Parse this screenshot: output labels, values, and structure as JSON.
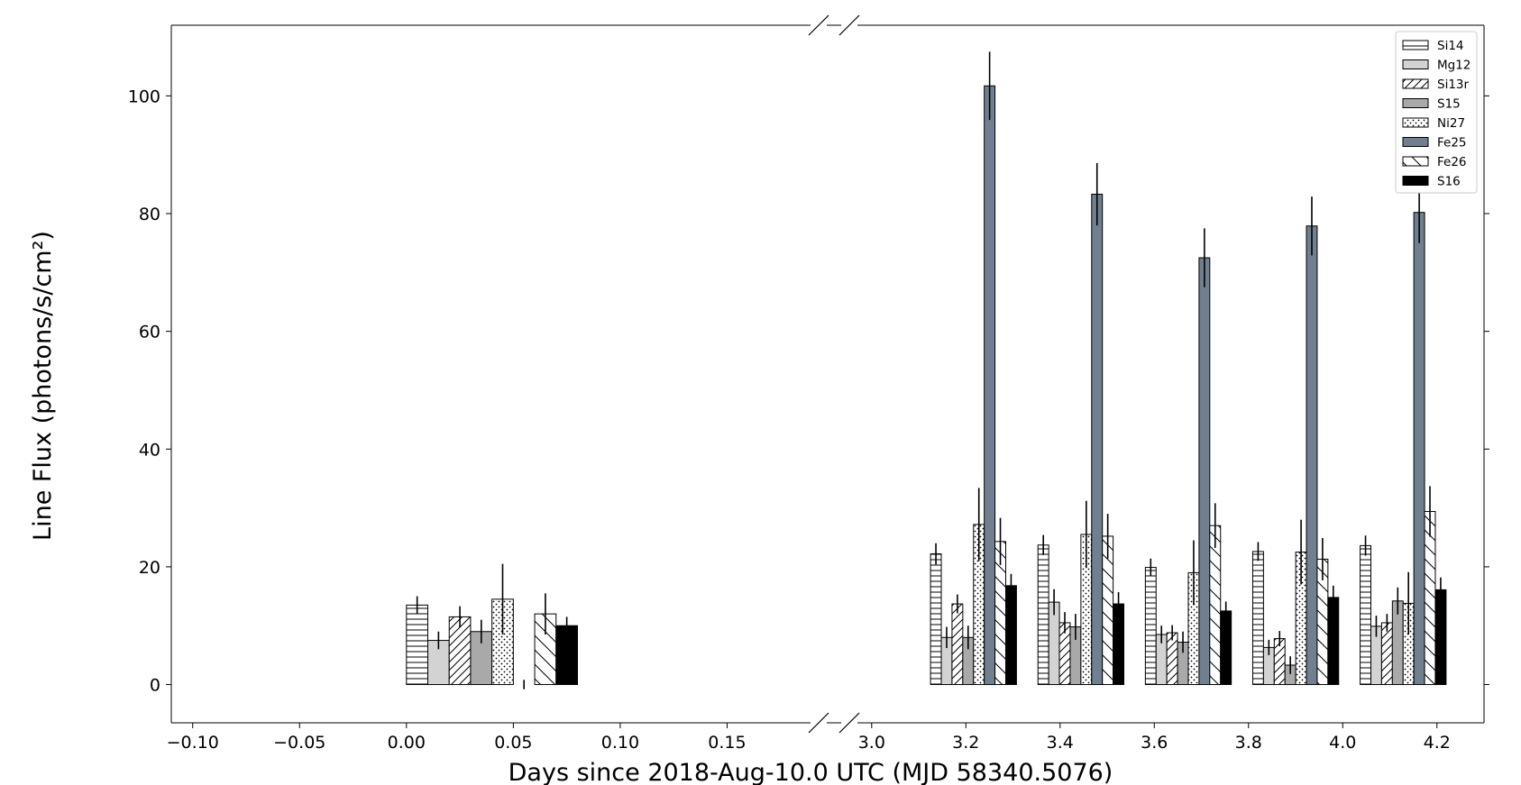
{
  "chart_data": {
    "type": "bar",
    "xlabel": "Days since 2018-Aug-10.0 UTC (MJD 58340.5076)",
    "ylabel": "Line Flux (photons/s/cm²)",
    "ylim": [
      -6.5,
      112
    ],
    "yticks": [
      0,
      20,
      40,
      60,
      80,
      100
    ],
    "broken_x_axis": true,
    "panels": [
      {
        "xlim": [
          -0.11,
          0.2
        ],
        "xticks": [
          -0.1,
          -0.05,
          0.0,
          0.05,
          0.1,
          0.15
        ],
        "xtick_labels": [
          "−0.10",
          "−0.05",
          "0.00",
          "0.05",
          "0.10",
          "0.15"
        ],
        "bar_width": 0.01,
        "groups": [
          {
            "x": 0.0,
            "values": [
              13.5,
              7.5,
              11.5,
              9.0,
              14.5,
              0.0,
              12.0,
              10.0
            ],
            "errors": [
              1.5,
              1.5,
              1.8,
              2.0,
              6.0,
              0.8,
              3.5,
              1.5
            ]
          }
        ]
      },
      {
        "xlim": [
          2.92,
          4.3
        ],
        "xticks": [
          3.0,
          3.2,
          3.4,
          3.6,
          3.8,
          4.0,
          4.2
        ],
        "xtick_labels": [
          "3.0",
          "3.2",
          "3.4",
          "3.6",
          "3.8",
          "4.0",
          "4.2"
        ],
        "bar_width": 0.0228,
        "groups": [
          {
            "x": 3.125,
            "values": [
              22.2,
              8.0,
              13.7,
              8.0,
              27.2,
              101.7,
              24.3,
              16.8
            ],
            "errors": [
              1.8,
              1.8,
              1.6,
              2.0,
              6.2,
              5.8,
              4.0,
              2.0
            ]
          },
          {
            "x": 3.353,
            "values": [
              23.7,
              14.0,
              10.5,
              9.8,
              25.5,
              83.3,
              25.2,
              13.7
            ],
            "errors": [
              1.7,
              2.2,
              1.8,
              2.2,
              5.7,
              5.3,
              3.8,
              2.0
            ]
          },
          {
            "x": 3.581,
            "values": [
              19.9,
              8.5,
              8.8,
              7.2,
              19.0,
              72.5,
              27.0,
              12.5
            ],
            "errors": [
              1.5,
              1.5,
              1.3,
              1.8,
              5.5,
              5.0,
              3.8,
              1.6
            ]
          },
          {
            "x": 3.809,
            "values": [
              22.6,
              6.3,
              7.8,
              3.3,
              22.5,
              77.9,
              21.3,
              14.8
            ],
            "errors": [
              1.6,
              1.3,
              1.3,
              1.5,
              5.5,
              5.0,
              3.6,
              2.0
            ]
          },
          {
            "x": 4.037,
            "values": [
              23.6,
              9.9,
              10.5,
              14.2,
              13.8,
              80.2,
              29.4,
              16.1
            ],
            "errors": [
              1.7,
              1.8,
              1.5,
              2.3,
              5.3,
              5.2,
              4.3,
              2.1
            ]
          }
        ]
      }
    ],
    "series": [
      {
        "name": "Si14",
        "fill": "#ffffff",
        "hatch": "horizontal"
      },
      {
        "name": "Mg12",
        "fill": "#d3d3d3",
        "hatch": "none"
      },
      {
        "name": "Si13r",
        "fill": "#ffffff",
        "hatch": "diagonal"
      },
      {
        "name": "S15",
        "fill": "#a9a9a9",
        "hatch": "none"
      },
      {
        "name": "Ni27",
        "fill": "#ffffff",
        "hatch": "dots"
      },
      {
        "name": "Fe25",
        "fill": "#708090",
        "hatch": "none"
      },
      {
        "name": "Fe26",
        "fill": "#ffffff",
        "hatch": "back-diagonal"
      },
      {
        "name": "S16",
        "fill": "#000000",
        "hatch": "none"
      }
    ],
    "legend_placement": "top-right",
    "grid": false
  }
}
